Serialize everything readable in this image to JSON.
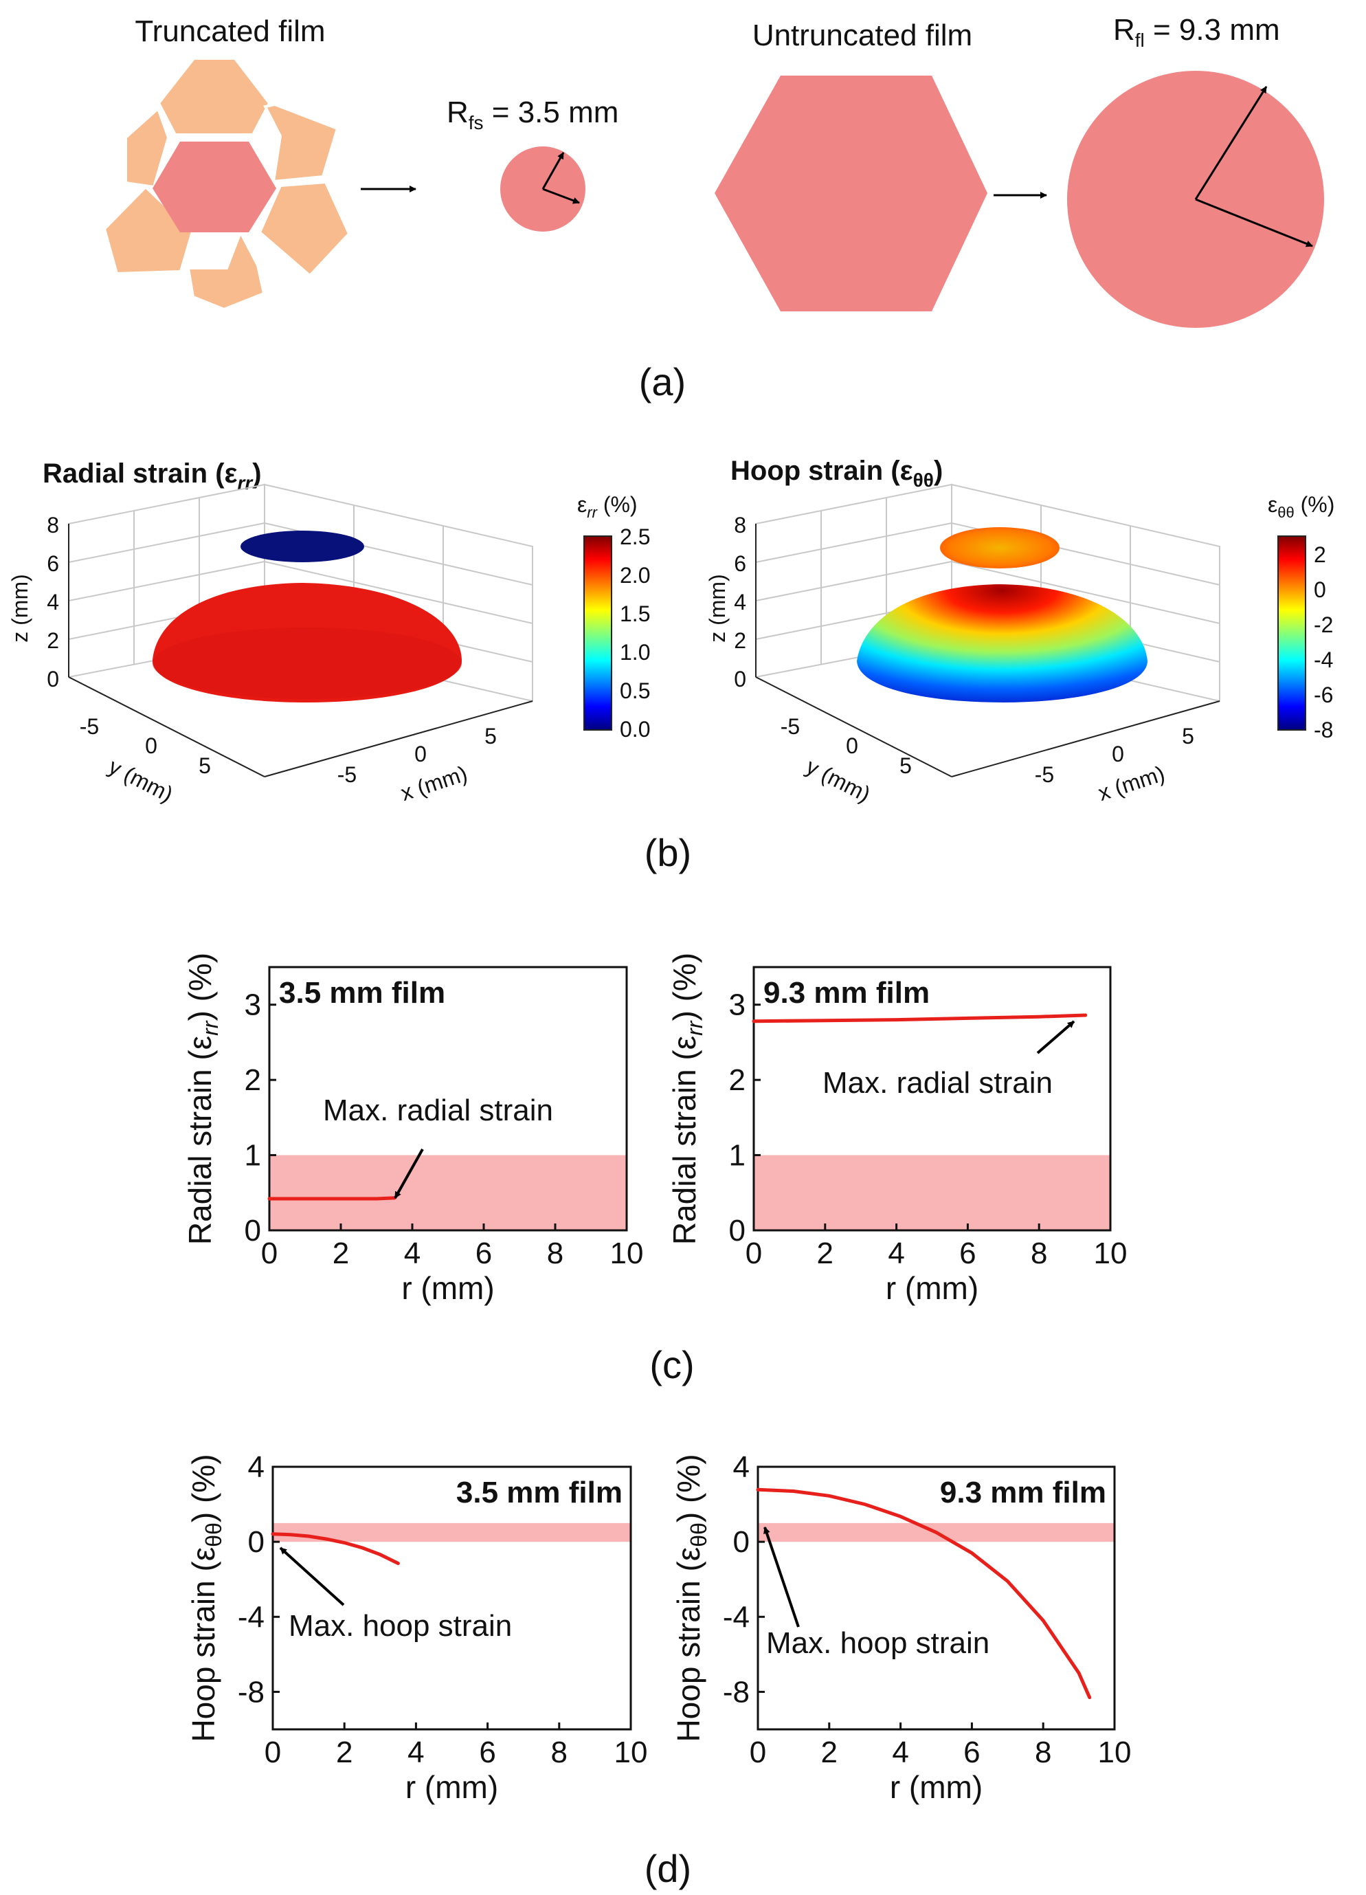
{
  "colors": {
    "film": "#f08585",
    "tile": "#f8bb8d",
    "curve": "#e8201c",
    "band": "#f9b5b5",
    "cap_radial": "#08117a"
  },
  "panel_a": {
    "truncated_title": "Truncated film",
    "rfs_label": "R",
    "rfs_sub": "fs",
    "rfs_value": " = 3.5 mm",
    "untruncated_title": "Untruncated film",
    "rfl_label": "R",
    "rfl_sub": "fl",
    "rfl_value": " = 9.3 mm",
    "caption": "(a)"
  },
  "panel_b": {
    "left_title": "Radial strain (ε",
    "left_title_sub": "rr",
    "left_title_end": ")",
    "right_title": "Hoop strain (ε",
    "right_title_sub": "θθ",
    "right_title_end": ")",
    "z_label": "z (mm)",
    "y_label": "y (mm)",
    "x_label": "x (mm)",
    "z_ticks": [
      "8",
      "6",
      "4",
      "2",
      "0"
    ],
    "y_ticks": [
      "-5",
      "0",
      "5"
    ],
    "x_ticks": [
      "-5",
      "0",
      "5"
    ],
    "cb_left_title": "ε",
    "cb_left_sub": "rr",
    "cb_left_unit": " (%)",
    "cb_left_ticks": [
      "2.5",
      "2.0",
      "1.5",
      "1.0",
      "0.5",
      "0.0"
    ],
    "cb_right_title": "ε",
    "cb_right_sub": "θθ",
    "cb_right_unit": " (%)",
    "cb_right_ticks": [
      "2",
      "0",
      "-2",
      "-4",
      "-6",
      "-8"
    ],
    "caption": "(b)"
  },
  "panel_c": {
    "caption": "(c)"
  },
  "panel_d": {
    "caption": "(d)"
  },
  "chart_data": [
    {
      "type": "line",
      "title": "3.5 mm film",
      "xlabel": "r (mm)",
      "ylabel": "Radial strain (ε",
      "ylabel_sub": "rr",
      "ylabel_end": ") (%)",
      "xlim": [
        0,
        10
      ],
      "ylim": [
        0,
        3.5
      ],
      "xticks": [
        "0",
        "2",
        "4",
        "6",
        "8",
        "10"
      ],
      "yticks": [
        "0",
        "1",
        "2",
        "3"
      ],
      "band": [
        0,
        1
      ],
      "series": [
        {
          "x": [
            0,
            1,
            2,
            3,
            3.5
          ],
          "y": [
            0.42,
            0.42,
            0.42,
            0.42,
            0.43
          ]
        }
      ],
      "annotation": "Max. radial strain"
    },
    {
      "type": "line",
      "title": "9.3 mm film",
      "xlabel": "r (mm)",
      "ylabel": "Radial strain (ε",
      "ylabel_sub": "rr",
      "ylabel_end": ") (%)",
      "xlim": [
        0,
        10
      ],
      "ylim": [
        0,
        3.5
      ],
      "xticks": [
        "0",
        "2",
        "4",
        "6",
        "8",
        "10"
      ],
      "yticks": [
        "0",
        "1",
        "2",
        "3"
      ],
      "band": [
        0,
        1
      ],
      "series": [
        {
          "x": [
            0,
            2,
            4,
            6,
            8,
            9.3
          ],
          "y": [
            2.78,
            2.79,
            2.8,
            2.82,
            2.84,
            2.86
          ]
        }
      ],
      "annotation": "Max. radial strain"
    },
    {
      "type": "line",
      "title": "3.5 mm film",
      "xlabel": "r (mm)",
      "ylabel": "Hoop strain (ε",
      "ylabel_sub": "θθ",
      "ylabel_end": ") (%)",
      "xlim": [
        0,
        10
      ],
      "ylim": [
        -10,
        4
      ],
      "xticks": [
        "0",
        "2",
        "4",
        "6",
        "8",
        "10"
      ],
      "yticks": [
        "4",
        "0",
        "-4",
        "-8"
      ],
      "band": [
        0,
        1
      ],
      "series": [
        {
          "x": [
            0,
            0.5,
            1,
            1.5,
            2,
            2.5,
            3,
            3.5
          ],
          "y": [
            0.42,
            0.38,
            0.3,
            0.15,
            -0.05,
            -0.32,
            -0.68,
            -1.15
          ]
        }
      ],
      "annotation": "Max. hoop strain"
    },
    {
      "type": "line",
      "title": "9.3 mm film",
      "xlabel": "r (mm)",
      "ylabel": "Hoop strain (ε",
      "ylabel_sub": "θθ",
      "ylabel_end": ") (%)",
      "xlim": [
        0,
        10
      ],
      "ylim": [
        -10,
        4
      ],
      "xticks": [
        "0",
        "2",
        "4",
        "6",
        "8",
        "10"
      ],
      "yticks": [
        "4",
        "0",
        "-4",
        "-8"
      ],
      "band": [
        0,
        1
      ],
      "series": [
        {
          "x": [
            0,
            1,
            2,
            3,
            4,
            5,
            6,
            7,
            8,
            9,
            9.3
          ],
          "y": [
            2.78,
            2.7,
            2.45,
            2.0,
            1.35,
            0.5,
            -0.6,
            -2.1,
            -4.2,
            -7.0,
            -8.3
          ]
        }
      ],
      "annotation": "Max. hoop strain"
    }
  ]
}
